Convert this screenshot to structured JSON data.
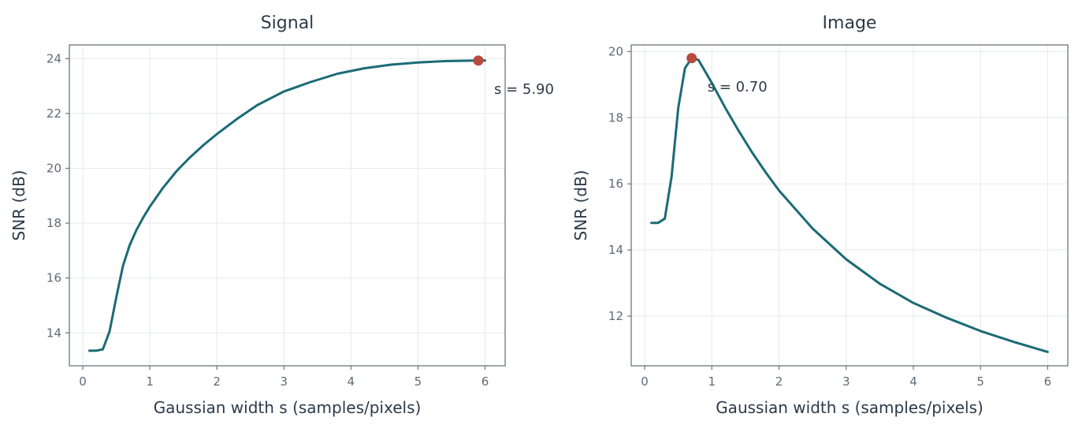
{
  "chart_data": [
    {
      "type": "line",
      "title": "Signal",
      "xlabel": "Gaussian width s (samples/pixels)",
      "ylabel": "SNR (dB)",
      "xlim": [
        -0.2,
        6.3
      ],
      "ylim": [
        12.8,
        24.5
      ],
      "xticks": [
        0,
        1,
        2,
        3,
        4,
        5,
        6
      ],
      "yticks": [
        14,
        16,
        18,
        20,
        22,
        24
      ],
      "grid": true,
      "x": [
        0.1,
        0.2,
        0.3,
        0.4,
        0.5,
        0.6,
        0.7,
        0.8,
        0.9,
        1.0,
        1.2,
        1.4,
        1.6,
        1.8,
        2.0,
        2.3,
        2.6,
        3.0,
        3.4,
        3.8,
        4.2,
        4.6,
        5.0,
        5.4,
        5.9,
        6.0
      ],
      "values": [
        13.35,
        13.35,
        13.4,
        14.05,
        15.3,
        16.45,
        17.2,
        17.75,
        18.2,
        18.6,
        19.3,
        19.9,
        20.4,
        20.85,
        21.25,
        21.8,
        22.3,
        22.8,
        23.15,
        23.45,
        23.65,
        23.78,
        23.86,
        23.91,
        23.93,
        23.93
      ],
      "peak": {
        "x": 5.9,
        "y": 23.93,
        "label": "s = 5.90"
      }
    },
    {
      "type": "line",
      "title": "Image",
      "xlabel": "Gaussian width s (samples/pixels)",
      "ylabel": "SNR (dB)",
      "xlim": [
        -0.2,
        6.3
      ],
      "ylim": [
        10.5,
        20.2
      ],
      "xticks": [
        0,
        1,
        2,
        3,
        4,
        5,
        6
      ],
      "yticks": [
        12,
        14,
        16,
        18,
        20
      ],
      "grid": true,
      "x": [
        0.1,
        0.2,
        0.3,
        0.4,
        0.5,
        0.6,
        0.7,
        0.8,
        0.9,
        1.0,
        1.2,
        1.4,
        1.6,
        1.8,
        2.0,
        2.5,
        3.0,
        3.5,
        4.0,
        4.5,
        5.0,
        5.5,
        6.0
      ],
      "values": [
        14.82,
        14.82,
        14.95,
        16.2,
        18.3,
        19.5,
        19.8,
        19.75,
        19.4,
        19.05,
        18.3,
        17.6,
        16.95,
        16.35,
        15.8,
        14.65,
        13.72,
        12.98,
        12.4,
        11.95,
        11.55,
        11.22,
        10.92
      ],
      "peak": {
        "x": 0.7,
        "y": 19.8,
        "label": "s = 0.70"
      }
    }
  ]
}
